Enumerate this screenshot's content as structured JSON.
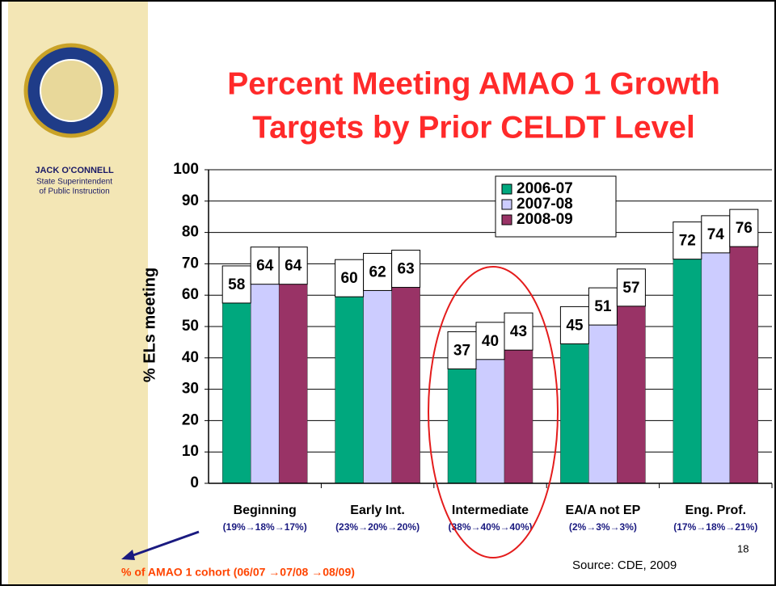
{
  "slide": {
    "name": "JACK O'CONNELL",
    "role_line1": "State Superintendent",
    "role_line2": "of Public Instruction",
    "source": "Source: CDE, 2009",
    "page_number": "18",
    "annotation": "% of AMAO 1 cohort (06/07 →07/08 →08/09)"
  },
  "chart_data": {
    "type": "bar",
    "title": [
      "Percent Meeting AMAO 1 Growth",
      "Targets by Prior CELDT Level"
    ],
    "y_label": "% ELs meeting",
    "categories": [
      "Beginning",
      "Early Int.",
      "Intermediate",
      "EA/A not EP",
      "Eng. Prof."
    ],
    "category_notes": [
      "(19%→18%→17%)",
      "(23%→20%→20%)",
      "(38%→40%→40%)",
      "(2%→3%→3%)",
      "(17%→18%→21%)"
    ],
    "series": [
      {
        "name": "2006-07",
        "color": "#00a87e",
        "values": [
          58,
          60,
          37,
          45,
          72
        ]
      },
      {
        "name": "2007-08",
        "color": "#ccccff",
        "values": [
          64,
          62,
          40,
          51,
          74
        ]
      },
      {
        "name": "2008-09",
        "color": "#993366",
        "values": [
          64,
          63,
          43,
          57,
          76
        ]
      }
    ],
    "ylim": [
      0,
      100
    ],
    "yticks": [
      0,
      10,
      20,
      30,
      40,
      50,
      60,
      70,
      80,
      90,
      100
    ],
    "grid": true,
    "legend": "top"
  }
}
